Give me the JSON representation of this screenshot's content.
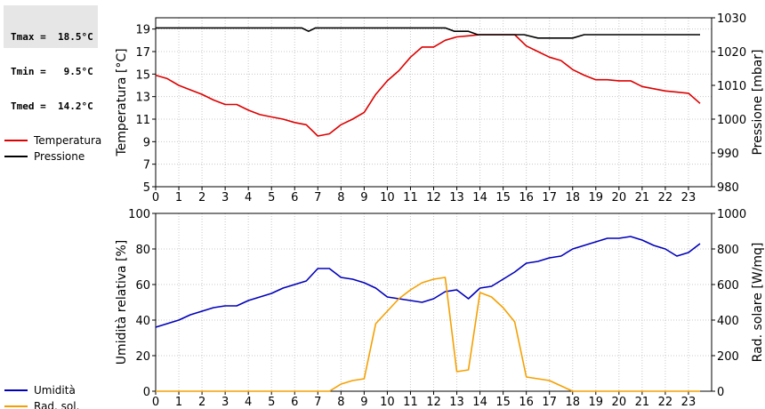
{
  "stats": {
    "tmax": "Tmax =  18.5°C",
    "tmin": "Tmin =   9.5°C",
    "tmed": "Tmed =  14.2°C"
  },
  "chart_data": [
    {
      "type": "line",
      "x_range": [
        0,
        24
      ],
      "x_ticks": [
        0,
        1,
        2,
        3,
        4,
        5,
        6,
        7,
        8,
        9,
        10,
        11,
        12,
        13,
        14,
        15,
        16,
        17,
        18,
        19,
        20,
        21,
        22,
        23
      ],
      "ylabel_left": "Temperatura [°C]",
      "ylabel_right": "Pressione [mbar]",
      "ylim_left": [
        5,
        20
      ],
      "yticks_left": [
        5,
        7,
        9,
        11,
        13,
        15,
        17,
        19
      ],
      "ylim_right": [
        980,
        1030
      ],
      "yticks_right": [
        980,
        990,
        1000,
        1010,
        1020,
        1030
      ],
      "grid": true,
      "legend_placement": "left",
      "series": [
        {
          "name": "Temperatura",
          "axis": "left",
          "color": "#dd0000",
          "x": [
            0,
            0.5,
            1,
            1.5,
            2,
            2.5,
            3,
            3.5,
            4,
            4.5,
            5,
            5.5,
            6,
            6.5,
            7,
            7.5,
            8,
            8.5,
            9,
            9.5,
            10,
            10.5,
            11,
            11.5,
            12,
            12.5,
            13,
            13.5,
            14,
            14.5,
            15,
            15.5,
            16,
            16.5,
            17,
            17.5,
            18,
            18.5,
            19,
            19.5,
            20,
            20.5,
            21,
            21.5,
            22,
            22.5,
            23,
            23.5
          ],
          "y": [
            14.9,
            14.6,
            14.0,
            13.6,
            13.2,
            12.7,
            12.3,
            12.3,
            11.8,
            11.4,
            11.2,
            11.0,
            10.7,
            10.5,
            9.5,
            9.7,
            10.5,
            11.0,
            11.6,
            13.2,
            14.4,
            15.3,
            16.5,
            17.4,
            17.4,
            18.0,
            18.3,
            18.4,
            18.5,
            18.5,
            18.5,
            18.5,
            17.5,
            17.0,
            16.5,
            16.2,
            15.4,
            14.9,
            14.5,
            14.5,
            14.4,
            14.4,
            13.9,
            13.7,
            13.5,
            13.4,
            13.3,
            12.4
          ]
        },
        {
          "name": "Pressione",
          "axis": "right",
          "color": "#000000",
          "x": [
            0,
            6.3,
            6.6,
            6.9,
            12.5,
            12.9,
            13.5,
            13.9,
            15.5,
            15.9,
            16.5,
            18,
            18.5,
            23.5
          ],
          "y": [
            1027,
            1027,
            1026,
            1027,
            1027,
            1026,
            1026,
            1025,
            1025,
            1025,
            1024,
            1024,
            1025,
            1025
          ]
        }
      ]
    },
    {
      "type": "line",
      "x_range": [
        0,
        24
      ],
      "x_ticks": [
        0,
        1,
        2,
        3,
        4,
        5,
        6,
        7,
        8,
        9,
        10,
        11,
        12,
        13,
        14,
        15,
        16,
        17,
        18,
        19,
        20,
        21,
        22,
        23
      ],
      "ylabel_left": "Umidità relativa [%]",
      "ylabel_right": "Rad. solare [W/mq]",
      "ylim_left": [
        0,
        100
      ],
      "yticks_left": [
        0,
        20,
        40,
        60,
        80,
        100
      ],
      "ylim_right": [
        0,
        1000
      ],
      "yticks_right": [
        0,
        200,
        400,
        600,
        800,
        1000
      ],
      "grid": true,
      "legend_placement": "left",
      "series": [
        {
          "name": "Umidità",
          "axis": "left",
          "color": "#0000bb",
          "x": [
            0,
            0.5,
            1,
            1.5,
            2,
            2.5,
            3,
            3.5,
            4,
            4.5,
            5,
            5.5,
            6,
            6.5,
            7,
            7.5,
            8,
            8.5,
            9,
            9.5,
            10,
            10.5,
            11,
            11.5,
            12,
            12.5,
            13,
            13.5,
            14,
            14.5,
            15,
            15.5,
            16,
            16.5,
            17,
            17.5,
            18,
            18.5,
            19,
            19.5,
            20,
            20.5,
            21,
            21.5,
            22,
            22.5,
            23,
            23.5
          ],
          "y": [
            36,
            38,
            40,
            43,
            45,
            47,
            48,
            48,
            51,
            53,
            55,
            58,
            60,
            62,
            69,
            69,
            64,
            63,
            61,
            58,
            53,
            52,
            51,
            50,
            52,
            56,
            57,
            52,
            58,
            59,
            63,
            67,
            72,
            73,
            75,
            76,
            80,
            82,
            84,
            86,
            86,
            87,
            85,
            82,
            80,
            76,
            78,
            83
          ]
        },
        {
          "name": "Rad. sol.",
          "axis": "right",
          "color": "#f5a000",
          "x": [
            0,
            7.5,
            8,
            8.5,
            9,
            9.5,
            10,
            10.5,
            11,
            11.5,
            12,
            12.5,
            13,
            13.5,
            14,
            14.5,
            15,
            15.5,
            16,
            16.5,
            17,
            17.5,
            18,
            18.5,
            19,
            23.5
          ],
          "y": [
            0,
            0,
            40,
            60,
            70,
            380,
            450,
            520,
            570,
            610,
            630,
            640,
            110,
            120,
            555,
            530,
            470,
            390,
            80,
            70,
            60,
            30,
            0,
            0,
            0,
            0
          ]
        }
      ]
    }
  ]
}
